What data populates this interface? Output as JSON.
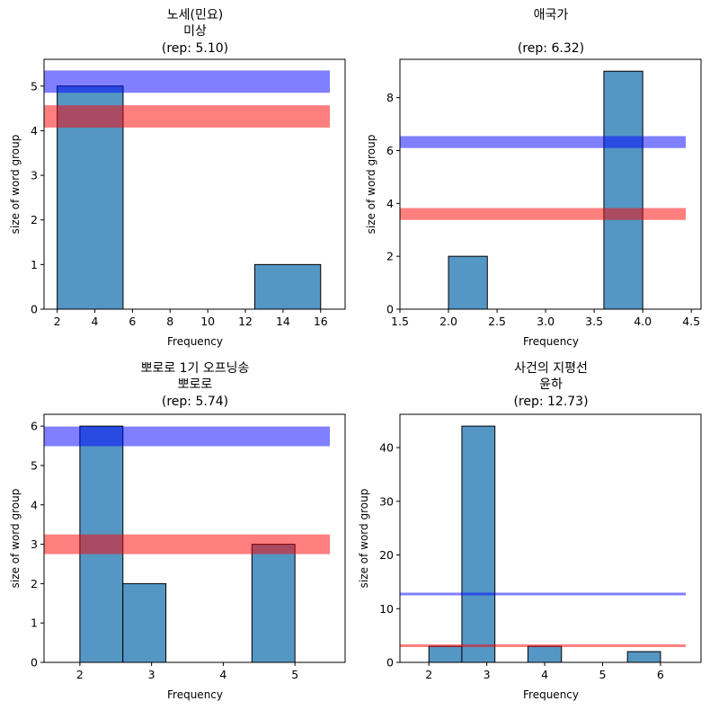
{
  "chart_data": [
    {
      "type": "bar",
      "title_lines": [
        "노세(민요)",
        "미상",
        "(rep: 5.10)"
      ],
      "xlabel": "Frequency",
      "ylabel": "size of word group",
      "xlim": [
        1.3,
        17.3
      ],
      "ylim": [
        0,
        5.6
      ],
      "xticks": [
        "2",
        "4",
        "6",
        "8",
        "10",
        "12",
        "14",
        "16"
      ],
      "yticks": [
        "0",
        "1",
        "2",
        "3",
        "4",
        "5"
      ],
      "bins": [
        {
          "x0": 2,
          "x1": 5.5,
          "value": 5
        },
        {
          "x0": 12.5,
          "x1": 16,
          "value": 1
        }
      ],
      "hlines": [
        {
          "y": 5.1,
          "color": "#0000ff",
          "alpha": 0.5,
          "thickness": 0.5
        },
        {
          "y": 4.32,
          "color": "#ff0000",
          "alpha": 0.5,
          "thickness": 0.5
        }
      ]
    },
    {
      "type": "bar",
      "title_lines": [
        "애국가",
        "",
        "(rep: 6.32)"
      ],
      "xlabel": "Frequency",
      "ylabel": "size of word group",
      "xlim": [
        1.5,
        4.6
      ],
      "ylim": [
        0,
        9.45
      ],
      "xticks": [
        "1.5",
        "2.0",
        "2.5",
        "3.0",
        "3.5",
        "4.0",
        "4.5"
      ],
      "yticks": [
        "0",
        "2",
        "4",
        "6",
        "8"
      ],
      "bins": [
        {
          "x0": 2.0,
          "x1": 2.4,
          "value": 2
        },
        {
          "x0": 3.6,
          "x1": 4.0,
          "value": 9
        }
      ],
      "hlines": [
        {
          "y": 6.32,
          "color": "#0000ff",
          "alpha": 0.5,
          "thickness": 0.45
        },
        {
          "y": 3.6,
          "color": "#ff0000",
          "alpha": 0.5,
          "thickness": 0.45
        }
      ]
    },
    {
      "type": "bar",
      "title_lines": [
        "뽀로로 1기 오프닝송",
        "뽀로로",
        "(rep: 5.74)"
      ],
      "xlabel": "Frequency",
      "ylabel": "size of word group",
      "xlim": [
        1.5,
        5.7
      ],
      "ylim": [
        0,
        6.3
      ],
      "xticks": [
        "2",
        "3",
        "4",
        "5"
      ],
      "yticks": [
        "0",
        "1",
        "2",
        "3",
        "4",
        "5",
        "6"
      ],
      "bins": [
        {
          "x0": 2.0,
          "x1": 2.6,
          "value": 6
        },
        {
          "x0": 2.6,
          "x1": 3.2,
          "value": 2
        },
        {
          "x0": 4.4,
          "x1": 5.0,
          "value": 3
        }
      ],
      "hlines": [
        {
          "y": 5.74,
          "color": "#0000ff",
          "alpha": 0.5,
          "thickness": 0.5
        },
        {
          "y": 3.0,
          "color": "#ff0000",
          "alpha": 0.5,
          "thickness": 0.5
        }
      ]
    },
    {
      "type": "bar",
      "title_lines": [
        "사건의 지평선",
        "윤하",
        "(rep: 12.73)"
      ],
      "xlabel": "Frequency",
      "ylabel": "size of word group",
      "xlim": [
        1.5,
        6.7
      ],
      "ylim": [
        0,
        46.2
      ],
      "xticks": [
        "2",
        "3",
        "4",
        "5",
        "6"
      ],
      "yticks": [
        "0",
        "10",
        "20",
        "30",
        "40"
      ],
      "bins": [
        {
          "x0": 2.0,
          "x1": 2.57,
          "value": 3
        },
        {
          "x0": 2.57,
          "x1": 3.14,
          "value": 44
        },
        {
          "x0": 3.71,
          "x1": 4.29,
          "value": 3
        },
        {
          "x0": 5.43,
          "x1": 6.0,
          "value": 2
        }
      ],
      "hlines": [
        {
          "y": 12.73,
          "color": "#0000ff",
          "alpha": 0.5,
          "thickness": 0.5
        },
        {
          "y": 3.1,
          "color": "#ff0000",
          "alpha": 0.5,
          "thickness": 0.5
        }
      ]
    }
  ]
}
